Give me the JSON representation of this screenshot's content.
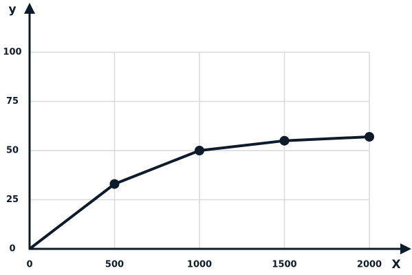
{
  "chart_data": {
    "type": "line",
    "x_label": "X",
    "y_label": "y",
    "x": [
      0,
      500,
      1000,
      1500,
      2000
    ],
    "series": [
      {
        "color": "#0d1b2a",
        "values": [
          0,
          33,
          50,
          55,
          57
        ]
      }
    ],
    "xlim": [
      0,
      2000
    ],
    "xticks": [
      0,
      500,
      1000,
      1500,
      2000
    ],
    "ylim": [
      0,
      100
    ],
    "yticks": [
      0,
      25,
      50,
      75,
      100
    ],
    "grid": true
  }
}
